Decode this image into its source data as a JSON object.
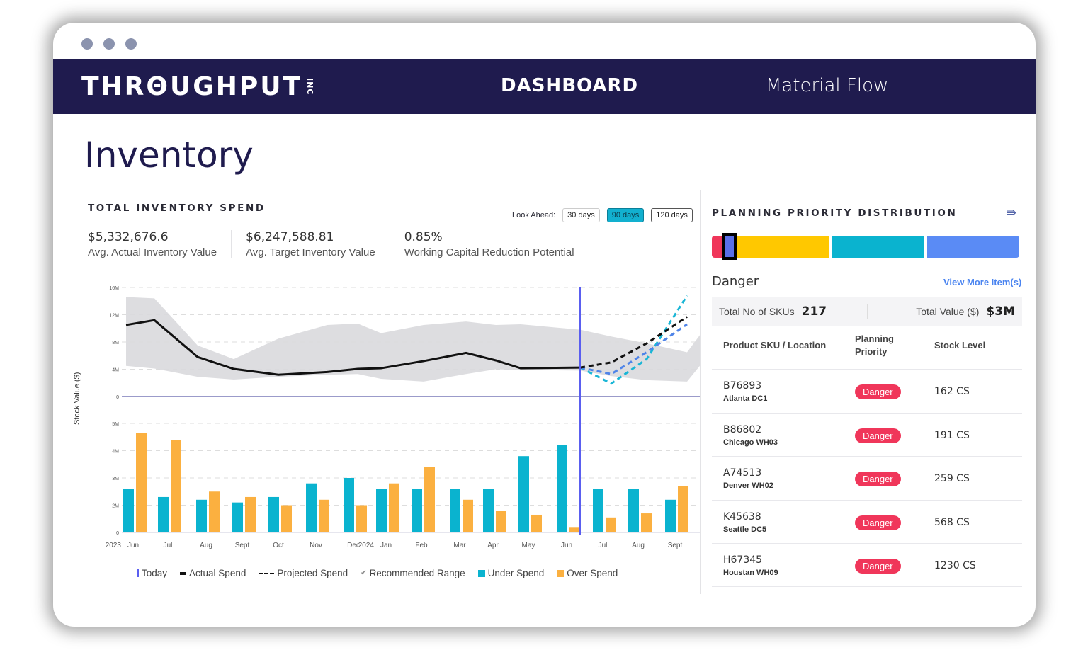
{
  "window": {
    "dots": 3
  },
  "header": {
    "logo": "THRΘUGHPUT",
    "logo_suffix": "INC",
    "nav_dashboard": "DASHBOARD",
    "nav_material_flow": "Material Flow",
    "bg_color": "#1f1b4e"
  },
  "page_title": "Inventory",
  "spend": {
    "title": "TOTAL INVENTORY SPEND",
    "look_ahead_label": "Look Ahead:",
    "look_ahead_options": [
      "30 days",
      "90 days",
      "120 days"
    ],
    "look_ahead_selected": "90 days",
    "stats": [
      {
        "value": "$5,332,676.6",
        "label": "Avg. Actual Inventory Value"
      },
      {
        "value": "$6,247,588.81",
        "label": "Avg. Target Inventory Value"
      },
      {
        "value": "0.85%",
        "label": "Working Capital Reduction Potential"
      }
    ],
    "legend": [
      "Today",
      "Actual Spend",
      "Projected Spend",
      "Recommended Range",
      "Under Spend",
      "Over Spend"
    ]
  },
  "chart_data": {
    "type": "line+bar",
    "ylabel": "Stock Value ($)",
    "categories": [
      "Jun",
      "Jul",
      "Aug",
      "Sept",
      "Oct",
      "Nov",
      "Dec",
      "Jan",
      "Feb",
      "Mar",
      "Apr",
      "May",
      "Jun",
      "Jul",
      "Aug",
      "Sept"
    ],
    "year_labels": {
      "0": "2023",
      "7": "2024"
    },
    "today_index": 12,
    "line_panel": {
      "yticks": [
        "0",
        "4M",
        "8M",
        "12M",
        "16M"
      ],
      "ylim": [
        0,
        16
      ],
      "actual_spend": [
        10.5,
        11.2,
        5.8,
        4.05,
        3.2,
        3.6,
        4.05,
        4.15,
        5.2,
        6.4,
        5.3,
        4.15,
        4.25
      ],
      "projected_spend": {
        "start_index": 12,
        "values": [
          4.25,
          5.0,
          7.8,
          11.7
        ]
      },
      "projected_upper": {
        "start_index": 12,
        "values": [
          4.25,
          1.9,
          5.5,
          14.8
        ]
      },
      "projected_lower": {
        "start_index": 12,
        "values": [
          4.25,
          3.3,
          6.5,
          10.6
        ]
      },
      "recommended_range_upper": [
        14.6,
        14.4,
        7.5,
        5.5,
        8.5,
        10.5,
        10.7,
        9.3,
        10.5,
        11.0,
        10.5,
        10.6,
        9.8,
        8.8,
        7.8,
        6.5
      ],
      "recommended_range_lower": [
        4.5,
        4.1,
        2.9,
        2.5,
        2.9,
        3.2,
        3.3,
        2.6,
        2.2,
        3.3,
        4.0,
        3.9,
        3.8,
        3.0,
        2.4,
        2.2
      ]
    },
    "bar_panel": {
      "yticks": [
        "0",
        "2M",
        "3M",
        "4M",
        "5M"
      ],
      "series": [
        {
          "name": "Under Spend",
          "color": "#0ab3cf",
          "values": [
            2.6,
            2.3,
            2.2,
            2.1,
            2.3,
            2.8,
            3.0,
            2.6,
            2.6,
            2.6,
            2.6,
            3.8,
            4.2,
            2.6,
            2.6,
            2.2
          ]
        },
        {
          "name": "Over Spend",
          "color": "#fbb040",
          "values": [
            4.65,
            4.4,
            2.5,
            2.3,
            2.0,
            2.2,
            2.0,
            2.8,
            3.4,
            2.2,
            1.6,
            1.3,
            0.4,
            1.1,
            1.4,
            2.7
          ]
        }
      ]
    },
    "colors": {
      "today": "#5a5ef0",
      "actual": "#111111",
      "projected": "#111111",
      "range": "#d9d9dd",
      "proj_upper": "#1ab6d6",
      "proj_lower": "#4f84e8"
    }
  },
  "priority": {
    "title": "PLANNING PRIORITY DISTRIBUTION",
    "segments": [
      {
        "color": "#f0365a",
        "share": 0.035
      },
      {
        "color": "#ffc800",
        "share": 0.345
      },
      {
        "color": "#0ab3cf",
        "share": 0.305
      },
      {
        "color": "#5a8bf5",
        "share": 0.305
      }
    ],
    "selected": "Danger",
    "view_more": "View More Item(s)",
    "total_skus_label": "Total No of SKUs",
    "total_skus": "217",
    "total_value_label": "Total Value ($)",
    "total_value": "$3M",
    "columns": [
      "Product SKU / Location",
      "Planning Priority",
      "Stock Level"
    ],
    "rows": [
      {
        "sku": "B76893",
        "location": "Atlanta DC1",
        "priority": "Danger",
        "stock": "162 CS"
      },
      {
        "sku": "B86802",
        "location": "Chicago WH03",
        "priority": "Danger",
        "stock": "191 CS"
      },
      {
        "sku": "A74513",
        "location": "Denver WH02",
        "priority": "Danger",
        "stock": "259 CS"
      },
      {
        "sku": "K45638",
        "location": "Seattle DC5",
        "priority": "Danger",
        "stock": "568 CS"
      },
      {
        "sku": "H67345",
        "location": "Houstan WH09",
        "priority": "Danger",
        "stock": "1230 CS"
      }
    ]
  }
}
